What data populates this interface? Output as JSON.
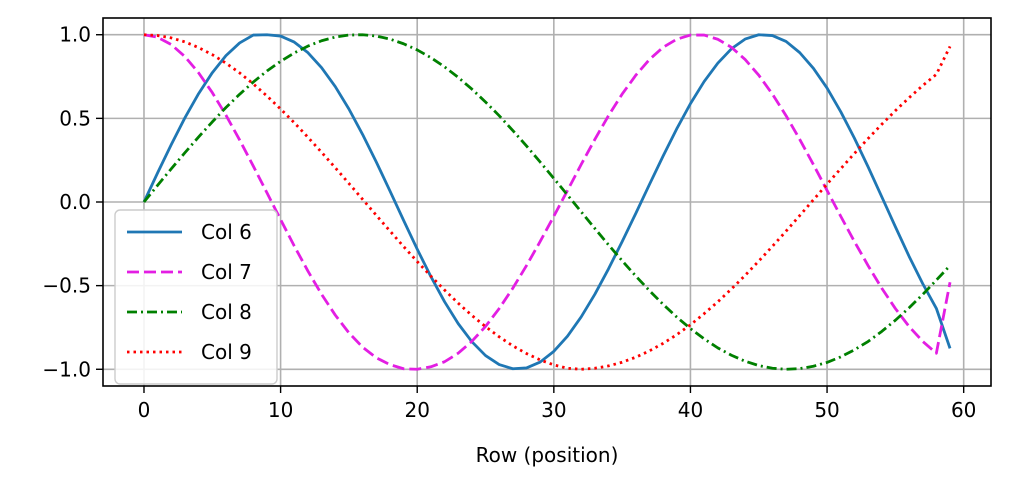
{
  "chart_data": {
    "type": "line",
    "title": "",
    "xlabel": "Row (position)",
    "ylabel": "",
    "xlim": [
      -3,
      62
    ],
    "ylim": [
      -1.1,
      1.1
    ],
    "xticks": [
      0,
      10,
      20,
      30,
      40,
      50,
      60
    ],
    "yticks": [
      1.0,
      0.5,
      0.0,
      -0.5,
      -1.0
    ],
    "xtick_labels": [
      "0",
      "10",
      "20",
      "30",
      "40",
      "50",
      "60"
    ],
    "ytick_labels": [
      "1.0",
      "0.5",
      "0.0",
      "−0.5",
      "−1.0"
    ],
    "grid": true,
    "legend_position": "lower-left",
    "x": [
      0,
      1,
      2,
      3,
      4,
      5,
      6,
      7,
      8,
      9,
      10,
      11,
      12,
      13,
      14,
      15,
      16,
      17,
      18,
      19,
      20,
      21,
      22,
      23,
      24,
      25,
      26,
      27,
      28,
      29,
      30,
      31,
      32,
      33,
      34,
      35,
      36,
      37,
      38,
      39,
      40,
      41,
      42,
      43,
      44,
      45,
      46,
      47,
      48,
      49,
      50,
      51,
      52,
      53,
      54,
      55,
      56,
      57,
      58,
      59
    ],
    "series": [
      {
        "name": "Col 6",
        "color": "#1f77b4",
        "dash": "solid",
        "values": [
          0.0,
          0.175,
          0.344,
          0.504,
          0.648,
          0.773,
          0.875,
          0.951,
          0.998,
          1.0,
          0.992,
          0.956,
          0.893,
          0.803,
          0.69,
          0.556,
          0.404,
          0.24,
          0.067,
          -0.109,
          -0.282,
          -0.446,
          -0.596,
          -0.727,
          -0.835,
          -0.918,
          -0.972,
          -0.997,
          -0.992,
          -0.957,
          -0.893,
          -0.802,
          -0.687,
          -0.552,
          -0.4,
          -0.237,
          -0.068,
          0.105,
          0.275,
          0.438,
          0.588,
          0.72,
          0.83,
          0.916,
          0.974,
          1.0,
          0.995,
          0.96,
          0.893,
          0.799,
          0.681,
          0.54,
          0.382,
          0.211,
          0.032,
          -0.148,
          -0.324,
          -0.488,
          -0.636,
          -0.875
        ]
      },
      {
        "name": "Col 7",
        "color": "#e31ee3",
        "dash": "dashed",
        "values": [
          1.0,
          0.985,
          0.941,
          0.869,
          0.772,
          0.654,
          0.519,
          0.371,
          0.215,
          0.055,
          -0.105,
          -0.263,
          -0.413,
          -0.552,
          -0.676,
          -0.782,
          -0.868,
          -0.931,
          -0.972,
          -0.997,
          -1.0,
          -0.985,
          -0.955,
          -0.904,
          -0.833,
          -0.744,
          -0.637,
          -0.515,
          -0.38,
          -0.236,
          -0.085,
          0.069,
          0.224,
          0.374,
          0.516,
          0.645,
          0.758,
          0.852,
          0.925,
          0.973,
          0.998,
          0.998,
          0.973,
          0.925,
          0.852,
          0.758,
          0.645,
          0.516,
          0.374,
          0.224,
          0.069,
          -0.085,
          -0.236,
          -0.38,
          -0.515,
          -0.637,
          -0.744,
          -0.833,
          -0.904,
          -0.48
        ]
      },
      {
        "name": "Col 8",
        "color": "#008000",
        "dash": "dashdot",
        "values": [
          0.0,
          0.1,
          0.199,
          0.295,
          0.389,
          0.479,
          0.565,
          0.644,
          0.717,
          0.783,
          0.841,
          0.891,
          0.932,
          0.964,
          0.986,
          0.998,
          1.0,
          0.992,
          0.974,
          0.946,
          0.909,
          0.863,
          0.808,
          0.745,
          0.675,
          0.598,
          0.516,
          0.427,
          0.335,
          0.239,
          0.141,
          0.042,
          -0.058,
          -0.158,
          -0.256,
          -0.351,
          -0.443,
          -0.53,
          -0.612,
          -0.688,
          -0.757,
          -0.818,
          -0.872,
          -0.916,
          -0.952,
          -0.978,
          -0.994,
          -1.0,
          -0.996,
          -0.982,
          -0.959,
          -0.926,
          -0.884,
          -0.834,
          -0.774,
          -0.707,
          -0.633,
          -0.553,
          -0.467,
          -0.38
        ]
      },
      {
        "name": "Col 9",
        "color": "#ff0000",
        "dash": "dotted",
        "values": [
          1.0,
          0.995,
          0.981,
          0.957,
          0.923,
          0.881,
          0.83,
          0.772,
          0.706,
          0.634,
          0.556,
          0.474,
          0.387,
          0.297,
          0.205,
          0.111,
          0.016,
          -0.079,
          -0.173,
          -0.266,
          -0.356,
          -0.443,
          -0.526,
          -0.605,
          -0.678,
          -0.745,
          -0.806,
          -0.86,
          -0.906,
          -0.944,
          -0.974,
          -0.994,
          -1.0,
          -0.994,
          -0.98,
          -0.958,
          -0.928,
          -0.89,
          -0.845,
          -0.793,
          -0.734,
          -0.668,
          -0.597,
          -0.52,
          -0.439,
          -0.353,
          -0.265,
          -0.174,
          -0.081,
          0.013,
          0.107,
          0.199,
          0.29,
          0.379,
          0.464,
          0.546,
          0.623,
          0.696,
          0.763,
          0.93
        ]
      }
    ]
  }
}
